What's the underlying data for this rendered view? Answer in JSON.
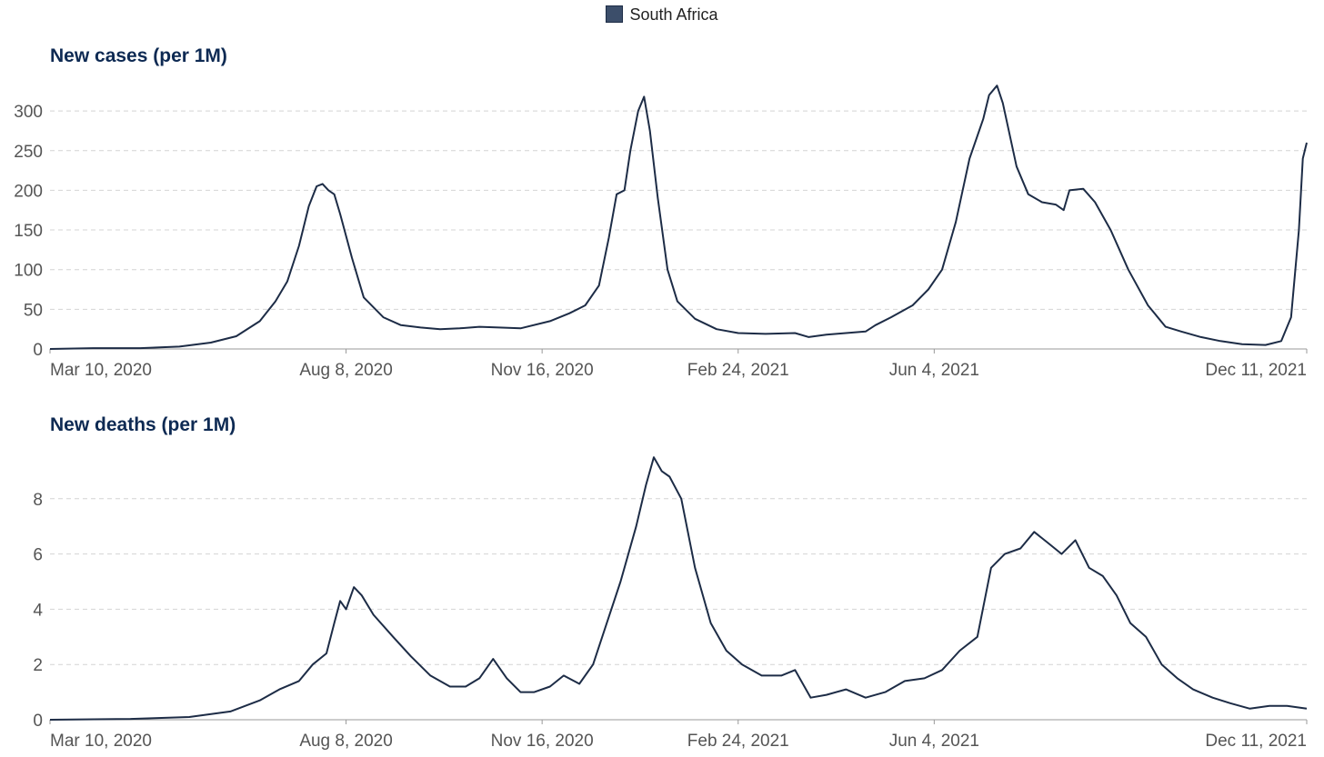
{
  "legend": {
    "label": "South Africa",
    "color": "#3c4e6a"
  },
  "chart_data": [
    {
      "type": "line",
      "title": "New cases (per 1M)",
      "xlabel": "",
      "ylabel": "",
      "x_ticks": [
        "Mar 10, 2020",
        "Aug 8, 2020",
        "Nov 16, 2020",
        "Feb 24, 2021",
        "Jun 4, 2021",
        "Dec 11, 2021"
      ],
      "y_ticks": [
        0,
        50,
        100,
        150,
        200,
        250,
        300
      ],
      "ylim": [
        0,
        300
      ],
      "xlim": [
        "2020-03-10",
        "2021-12-11"
      ],
      "grid": true,
      "series": [
        {
          "name": "South Africa",
          "color": "#1d2c46",
          "points": [
            [
              "2020-03-10",
              0
            ],
            [
              "2020-04-01",
              1
            ],
            [
              "2020-04-25",
              1
            ],
            [
              "2020-05-15",
              3
            ],
            [
              "2020-05-31",
              8
            ],
            [
              "2020-06-13",
              16
            ],
            [
              "2020-06-25",
              35
            ],
            [
              "2020-07-03",
              60
            ],
            [
              "2020-07-09",
              85
            ],
            [
              "2020-07-15",
              130
            ],
            [
              "2020-07-20",
              180
            ],
            [
              "2020-07-24",
              205
            ],
            [
              "2020-07-27",
              208
            ],
            [
              "2020-07-30",
              200
            ],
            [
              "2020-08-02",
              195
            ],
            [
              "2020-08-05",
              170
            ],
            [
              "2020-08-11",
              115
            ],
            [
              "2020-08-17",
              65
            ],
            [
              "2020-08-27",
              40
            ],
            [
              "2020-09-05",
              30
            ],
            [
              "2020-09-15",
              27
            ],
            [
              "2020-09-25",
              25
            ],
            [
              "2020-10-05",
              26
            ],
            [
              "2020-10-15",
              28
            ],
            [
              "2020-10-25",
              27
            ],
            [
              "2020-11-05",
              26
            ],
            [
              "2020-11-20",
              35
            ],
            [
              "2020-11-30",
              45
            ],
            [
              "2020-12-08",
              55
            ],
            [
              "2020-12-15",
              80
            ],
            [
              "2020-12-20",
              140
            ],
            [
              "2020-12-24",
              195
            ],
            [
              "2020-12-28",
              200
            ],
            [
              "2020-12-31",
              250
            ],
            [
              "2021-01-04",
              300
            ],
            [
              "2021-01-07",
              318
            ],
            [
              "2021-01-10",
              275
            ],
            [
              "2021-01-14",
              190
            ],
            [
              "2021-01-19",
              100
            ],
            [
              "2021-01-24",
              60
            ],
            [
              "2021-02-02",
              38
            ],
            [
              "2021-02-13",
              25
            ],
            [
              "2021-02-24",
              20
            ],
            [
              "2021-03-10",
              19
            ],
            [
              "2021-03-25",
              20
            ],
            [
              "2021-04-01",
              15
            ],
            [
              "2021-04-10",
              18
            ],
            [
              "2021-04-20",
              20
            ],
            [
              "2021-04-30",
              22
            ],
            [
              "2021-05-05",
              30
            ],
            [
              "2021-05-13",
              40
            ],
            [
              "2021-05-24",
              55
            ],
            [
              "2021-06-01",
              75
            ],
            [
              "2021-06-08",
              100
            ],
            [
              "2021-06-15",
              160
            ],
            [
              "2021-06-22",
              240
            ],
            [
              "2021-06-29",
              290
            ],
            [
              "2021-07-02",
              320
            ],
            [
              "2021-07-06",
              332
            ],
            [
              "2021-07-09",
              310
            ],
            [
              "2021-07-16",
              230
            ],
            [
              "2021-07-22",
              195
            ],
            [
              "2021-07-29",
              185
            ],
            [
              "2021-08-05",
              182
            ],
            [
              "2021-08-09",
              175
            ],
            [
              "2021-08-12",
              200
            ],
            [
              "2021-08-19",
              202
            ],
            [
              "2021-08-25",
              185
            ],
            [
              "2021-09-02",
              150
            ],
            [
              "2021-09-11",
              100
            ],
            [
              "2021-09-21",
              55
            ],
            [
              "2021-09-30",
              28
            ],
            [
              "2021-10-08",
              22
            ],
            [
              "2021-10-18",
              15
            ],
            [
              "2021-10-28",
              10
            ],
            [
              "2021-11-08",
              6
            ],
            [
              "2021-11-20",
              5
            ],
            [
              "2021-11-28",
              10
            ],
            [
              "2021-12-03",
              40
            ],
            [
              "2021-12-07",
              150
            ],
            [
              "2021-12-09",
              240
            ],
            [
              "2021-12-11",
              260
            ]
          ]
        }
      ]
    },
    {
      "type": "line",
      "title": "New deaths (per 1M)",
      "xlabel": "",
      "ylabel": "",
      "x_ticks": [
        "Mar 10, 2020",
        "Aug 8, 2020",
        "Nov 16, 2020",
        "Feb 24, 2021",
        "Jun 4, 2021",
        "Dec 11, 2021"
      ],
      "y_ticks": [
        0,
        2,
        4,
        6,
        8
      ],
      "ylim": [
        0,
        8
      ],
      "xlim": [
        "2020-03-10",
        "2021-12-11"
      ],
      "grid": true,
      "series": [
        {
          "name": "South Africa",
          "color": "#1d2c46",
          "points": [
            [
              "2020-03-10",
              0
            ],
            [
              "2020-04-20",
              0.03
            ],
            [
              "2020-05-20",
              0.1
            ],
            [
              "2020-06-10",
              0.3
            ],
            [
              "2020-06-25",
              0.7
            ],
            [
              "2020-07-05",
              1.1
            ],
            [
              "2020-07-15",
              1.4
            ],
            [
              "2020-07-22",
              2.0
            ],
            [
              "2020-07-29",
              2.4
            ],
            [
              "2020-08-02",
              3.5
            ],
            [
              "2020-08-05",
              4.3
            ],
            [
              "2020-08-08",
              4.0
            ],
            [
              "2020-08-12",
              4.8
            ],
            [
              "2020-08-16",
              4.5
            ],
            [
              "2020-08-22",
              3.8
            ],
            [
              "2020-09-01",
              3.0
            ],
            [
              "2020-09-10",
              2.3
            ],
            [
              "2020-09-20",
              1.6
            ],
            [
              "2020-09-30",
              1.2
            ],
            [
              "2020-10-08",
              1.2
            ],
            [
              "2020-10-15",
              1.5
            ],
            [
              "2020-10-22",
              2.2
            ],
            [
              "2020-10-29",
              1.5
            ],
            [
              "2020-11-05",
              1.0
            ],
            [
              "2020-11-12",
              1.0
            ],
            [
              "2020-11-20",
              1.2
            ],
            [
              "2020-11-27",
              1.6
            ],
            [
              "2020-12-05",
              1.3
            ],
            [
              "2020-12-12",
              2.0
            ],
            [
              "2020-12-19",
              3.5
            ],
            [
              "2020-12-26",
              5.0
            ],
            [
              "2021-01-03",
              7.0
            ],
            [
              "2021-01-08",
              8.5
            ],
            [
              "2021-01-12",
              9.5
            ],
            [
              "2021-01-16",
              9.0
            ],
            [
              "2021-01-20",
              8.8
            ],
            [
              "2021-01-26",
              8.0
            ],
            [
              "2021-02-02",
              5.5
            ],
            [
              "2021-02-10",
              3.5
            ],
            [
              "2021-02-18",
              2.5
            ],
            [
              "2021-02-26",
              2.0
            ],
            [
              "2021-03-08",
              1.6
            ],
            [
              "2021-03-18",
              1.6
            ],
            [
              "2021-03-25",
              1.8
            ],
            [
              "2021-04-02",
              0.8
            ],
            [
              "2021-04-10",
              0.9
            ],
            [
              "2021-04-20",
              1.1
            ],
            [
              "2021-04-30",
              0.8
            ],
            [
              "2021-05-10",
              1.0
            ],
            [
              "2021-05-20",
              1.4
            ],
            [
              "2021-05-30",
              1.5
            ],
            [
              "2021-06-08",
              1.8
            ],
            [
              "2021-06-17",
              2.5
            ],
            [
              "2021-06-26",
              3.0
            ],
            [
              "2021-07-03",
              5.5
            ],
            [
              "2021-07-10",
              6.0
            ],
            [
              "2021-07-18",
              6.2
            ],
            [
              "2021-07-25",
              6.8
            ],
            [
              "2021-08-01",
              6.4
            ],
            [
              "2021-08-08",
              6.0
            ],
            [
              "2021-08-15",
              6.5
            ],
            [
              "2021-08-22",
              5.5
            ],
            [
              "2021-08-29",
              5.2
            ],
            [
              "2021-09-05",
              4.5
            ],
            [
              "2021-09-12",
              3.5
            ],
            [
              "2021-09-20",
              3.0
            ],
            [
              "2021-09-28",
              2.0
            ],
            [
              "2021-10-06",
              1.5
            ],
            [
              "2021-10-14",
              1.1
            ],
            [
              "2021-10-24",
              0.8
            ],
            [
              "2021-11-02",
              0.6
            ],
            [
              "2021-11-12",
              0.4
            ],
            [
              "2021-11-22",
              0.5
            ],
            [
              "2021-12-01",
              0.5
            ],
            [
              "2021-12-11",
              0.4
            ]
          ]
        }
      ]
    }
  ]
}
